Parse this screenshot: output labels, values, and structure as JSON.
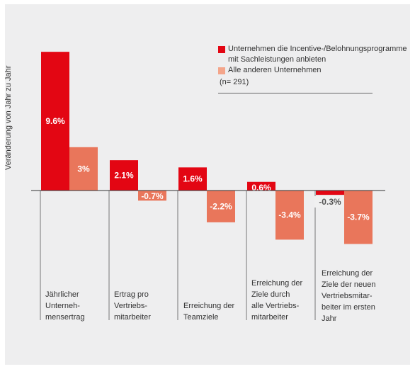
{
  "chart_data": {
    "type": "bar",
    "ylabel": "Veränderung von Jahr zu Jahr",
    "categories": [
      "Jährlicher\nUnterneh-\nmensertrag",
      "Ertrag pro\nVertriebs-\nmitarbeiter",
      "Erreichung der\nTeamziele",
      "Erreichung der\nZiele durch\nalle Vertriebs-\nmitarbeiter",
      "Erreichung der\nZiele der neuen\nVertriebsmitar-\nbeiter im ersten\nJahr"
    ],
    "series": [
      {
        "name": "Unternehmen die Incentive-/Belohnungsprogramme mit Sachleistungen anbieten",
        "color": "#e30613",
        "values": [
          9.6,
          2.1,
          1.6,
          0.6,
          -0.3
        ],
        "labels": [
          "9.6%",
          "2.1%",
          "1.6%",
          "0.6%",
          "-0.3%"
        ]
      },
      {
        "name": "Alle anderen Unternehmen",
        "color": "#e9765b",
        "values": [
          3,
          -0.7,
          -2.2,
          -3.4,
          -3.7
        ],
        "labels": [
          "3%",
          "-0.7%",
          "-2.2%",
          "-3.4%",
          "-3.7%"
        ]
      }
    ],
    "legend_note": "(n= 291)",
    "legend_position": "top-right",
    "ylim": [
      -3.7,
      9.6
    ],
    "grid": false
  }
}
